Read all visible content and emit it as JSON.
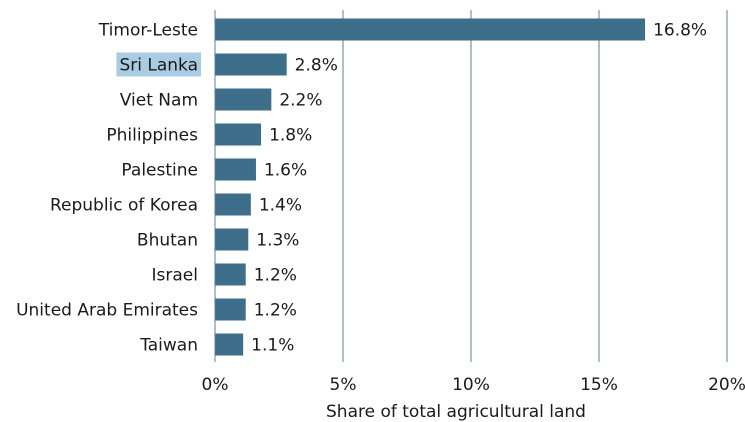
{
  "chart_data": {
    "type": "bar",
    "orientation": "horizontal",
    "categories": [
      "Timor-Leste",
      "Sri Lanka",
      "Viet Nam",
      "Philippines",
      "Palestine",
      "Republic of Korea",
      "Bhutan",
      "Israel",
      "United Arab Emirates",
      "Taiwan"
    ],
    "values": [
      16.8,
      2.8,
      2.2,
      1.8,
      1.6,
      1.4,
      1.3,
      1.2,
      1.2,
      1.1
    ],
    "value_labels": [
      "16.8%",
      "2.8%",
      "2.2%",
      "1.8%",
      "1.6%",
      "1.4%",
      "1.3%",
      "1.2%",
      "1.2%",
      "1.1%"
    ],
    "title": "",
    "xlabel": "Share of total agricultural land",
    "ylabel": "",
    "xlim": [
      0,
      20
    ],
    "xticks": [
      0,
      5,
      10,
      15,
      20
    ],
    "xtick_labels": [
      "0%",
      "5%",
      "10%",
      "15%",
      "20%"
    ],
    "grid": "vertical",
    "bar_color": "#3d6e8a",
    "grid_color": "#5b7f97",
    "highlighted_category": "Sri Lanka",
    "highlight_color": "#a9cce3"
  }
}
